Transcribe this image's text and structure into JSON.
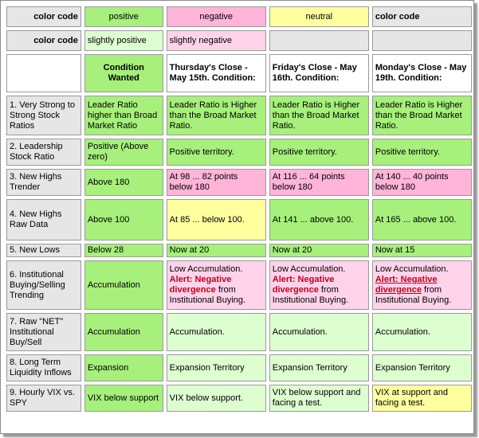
{
  "legend": {
    "label1": "color code",
    "positive": "positive",
    "negative": "negative",
    "neutral": "neutral",
    "label1b": "color code",
    "label2": "color code",
    "slightly_positive": "slightly positive",
    "slightly_negative": "slightly negative"
  },
  "colors": {
    "positive": "#a6f07b",
    "negative": "#ffb4d8",
    "neutral": "#ffffa0",
    "slightly_positive": "#ddffd0",
    "slightly_negative": "#ffd3ea",
    "label": "#e6e6e6",
    "alert": "#c4001a"
  },
  "header": {
    "wanted": "Condition Wanted",
    "col1": "Thursday's Close - May 15th. Condition:",
    "col2": "Friday's Close - May 16th. Condition:",
    "col3": "Monday's Close - May 19th. Condition:"
  },
  "rows": [
    {
      "label": "1. Very Strong to Strong Stock Ratios",
      "wanted": "Leader Ratio higher than Broad Market Ratio",
      "c1": "Leader Ratio is Higher than the Broad Market Ratio.",
      "c2": "Leader Ratio is Higher than the Broad Market Ratio.",
      "c3": "Leader Ratio is Higher than the Broad Market Ratio."
    },
    {
      "label": "2. Leadership Stock Ratio",
      "wanted": "Positive (Above zero)",
      "c1": "Positive territory.",
      "c2": "Positive territory.",
      "c3": "Positive territory."
    },
    {
      "label": "3. New Highs Trender",
      "wanted": "Above 180",
      "c1": "At 98 ... 82 points below 180",
      "c2": "At 116 ... 64 points below 180",
      "c3": "At 140 ... 40 points below 180"
    },
    {
      "label": "4. New Highs Raw Data",
      "wanted": "Above 100",
      "c1": "At 85 ... below 100.",
      "c2": "At 141 ... above 100.",
      "c3": "At 165 ... above 100."
    },
    {
      "label": "5. New Lows",
      "wanted": "Below 28",
      "c1": "Now at 20",
      "c2": "Now at 20",
      "c3": "Now at 15"
    },
    {
      "label": "6. Institutional Buying/Selling Trending",
      "wanted": "Accumulation",
      "c1_lead": "Low Accumulation.",
      "c1_alert": "Alert: Negative divergence",
      "c1_tail": "from Institutional Buying.",
      "c2_lead": "Low Accumulation.",
      "c2_alert": "Alert: Negative divergence",
      "c2_tail": "from Institutional Buying.",
      "c3_lead": "Low Accumulation.",
      "c3_alert": "Alert: Negative divergence",
      "c3_tail": "from Institutional Buying."
    },
    {
      "label": "7. Raw \"NET\" Institutional Buy/Sell",
      "wanted": "Accumulation",
      "c1": "Accumulation.",
      "c2": "Accumulation.",
      "c3": "Accumulation."
    },
    {
      "label": "8. Long Term Liquidity Inflows",
      "wanted": "Expansion",
      "c1": "Expansion Territory",
      "c2": "Expansion Territory",
      "c3": "Expansion Territory"
    },
    {
      "label": "9. Hourly VIX vs. SPY",
      "wanted": "VIX below support",
      "c1": "VIX below support.",
      "c2": "VIX below support and facing a test.",
      "c3": "VIX at support and facing a test."
    }
  ]
}
